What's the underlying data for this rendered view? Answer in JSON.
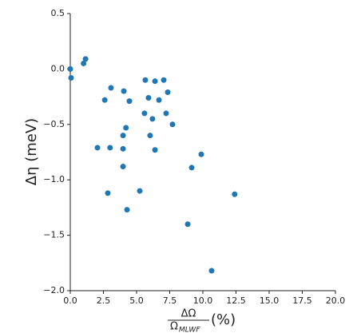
{
  "chart_data": {
    "type": "scatter",
    "x_label": {
      "numerator": "ΔΩ",
      "denominator": "Ω",
      "denominator_subscript": "MLWF",
      "suffix": "(%)"
    },
    "y_label": "Δη (meV)",
    "color": "#1f77b4",
    "x": [
      0,
      0.06,
      1.0,
      1.15,
      2.6,
      3.07,
      4.04,
      4.46,
      4.2,
      3.98,
      3.98,
      3.0,
      2.05,
      3.98,
      2.83,
      4.28,
      5.24,
      5.66,
      6.39,
      7.05,
      7.35,
      5.9,
      6.69,
      5.6,
      6.2,
      7.23,
      7.71,
      6.02,
      6.39,
      9.16,
      9.88,
      8.86,
      10.66,
      12.4
    ],
    "values": [
      0,
      -0.08,
      0.05,
      0.09,
      -0.28,
      -0.17,
      -0.2,
      -0.29,
      -0.53,
      -0.6,
      -0.72,
      -0.71,
      -0.71,
      -0.88,
      -1.12,
      -1.27,
      -1.1,
      -0.1,
      -0.11,
      -0.1,
      -0.21,
      -0.26,
      -0.28,
      -0.4,
      -0.45,
      -0.4,
      -0.5,
      -0.6,
      -0.73,
      -0.89,
      -0.77,
      -1.4,
      -1.82,
      -1.13
    ],
    "xlim": [
      0,
      20
    ],
    "ylim": [
      -2.0,
      0.5
    ],
    "xticks": [
      {
        "value": 0,
        "label": "0.0"
      },
      2.5,
      {
        "value": 5,
        "label": "5.0"
      },
      7.5,
      {
        "value": 10,
        "label": "10.0"
      },
      12.5,
      {
        "value": 15,
        "label": "15.0"
      },
      17.5,
      {
        "value": 20,
        "label": "20.0"
      }
    ],
    "yticks": [
      {
        "value": -2,
        "label": "−2.0"
      },
      {
        "value": -1.5,
        "label": "−1.5"
      },
      {
        "value": -1,
        "label": "−1.0"
      },
      {
        "value": -0.5,
        "label": "−0.5"
      },
      {
        "value": 0,
        "label": "0.0"
      },
      0.5
    ]
  }
}
